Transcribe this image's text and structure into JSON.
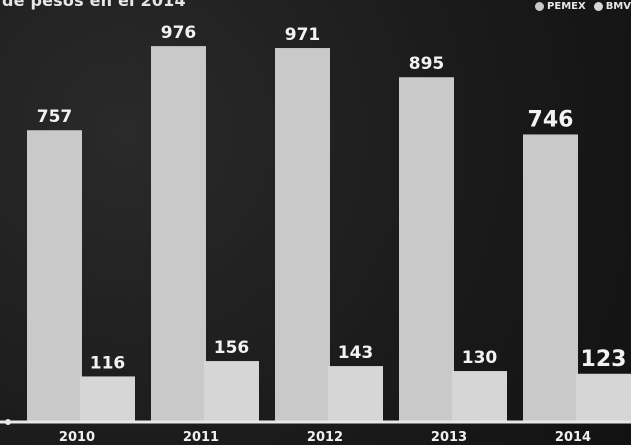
{
  "chart_data": {
    "type": "bar",
    "title": "de pesos en el 2014",
    "categories": [
      "2010",
      "2011",
      "2012",
      "2013",
      "2014"
    ],
    "series": [
      {
        "name": "PEMEX",
        "values": [
          757,
          976,
          971,
          895,
          746
        ]
      },
      {
        "name": "BMV",
        "values": [
          116,
          156,
          143,
          130,
          123
        ]
      }
    ],
    "ylim": [
      0,
      1070
    ],
    "grid": false,
    "legend_position": "top-right",
    "colors": {
      "PEMEX": "#c9c9c9",
      "BMV": "#d6d6d6",
      "background": "#1b1b1b",
      "axis": "#e8e8e8"
    }
  }
}
